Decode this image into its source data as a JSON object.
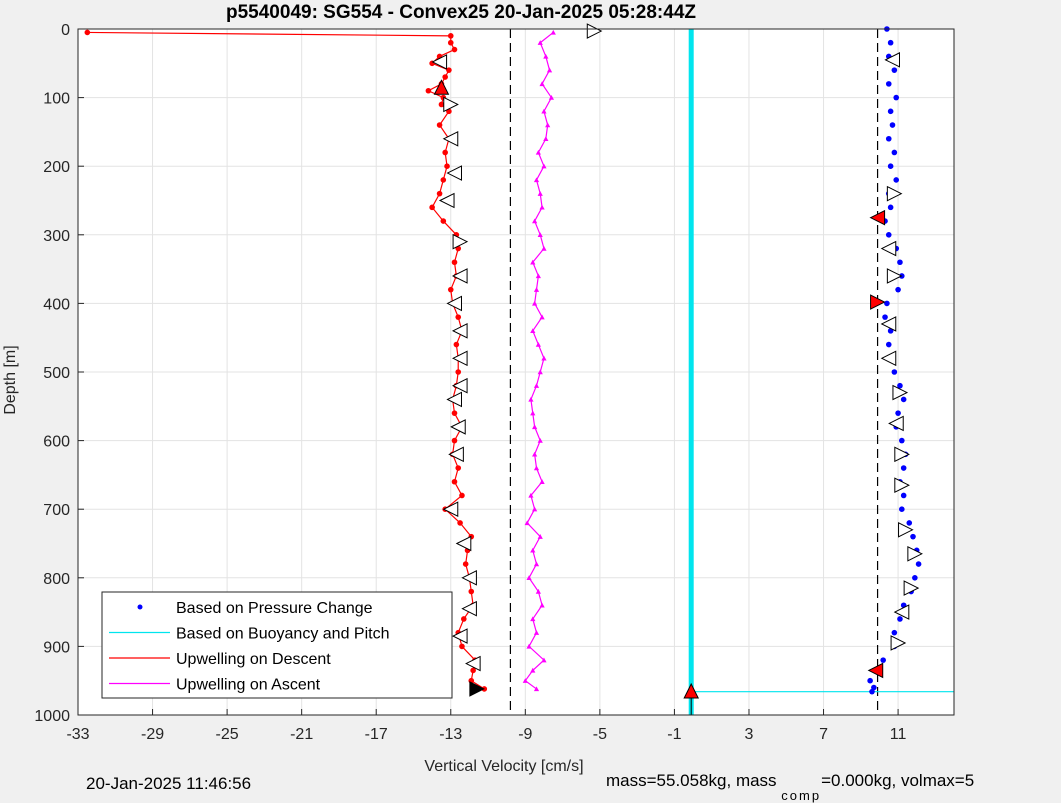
{
  "chart_data": {
    "type": "scatter",
    "title": "p5540049: SG554 - Convex25 20-Jan-2025 05:28:44Z",
    "xlabel": "Vertical Velocity [cm/s]",
    "ylabel": "Depth [m]",
    "xlim": [
      -33,
      14
    ],
    "ylim": [
      0,
      1000
    ],
    "y_reversed": true,
    "grid": true,
    "x_ticks": [
      "-33",
      "-29",
      "-25",
      "-21",
      "-17",
      "-13",
      "-9",
      "-5",
      "-1",
      "3",
      "7",
      "11"
    ],
    "y_ticks": [
      "0",
      "100",
      "200",
      "300",
      "400",
      "500",
      "600",
      "700",
      "800",
      "900",
      "1000"
    ],
    "legend_position": "bottom-left",
    "legend": [
      {
        "label": "Based on Pressure Change",
        "color": "#0000ff",
        "marker": "dot"
      },
      {
        "label": "Based on Buoyancy and Pitch",
        "color": "#00e5ee",
        "marker": "line"
      },
      {
        "label": "Upwelling on Descent",
        "color": "#ff0000",
        "marker": "line"
      },
      {
        "label": "Upwelling on Ascent",
        "color": "#ff00ff",
        "marker": "line"
      }
    ],
    "vertical_lines": [
      {
        "x": -9.8,
        "style": "dashed",
        "color": "#000000"
      },
      {
        "x": 9.9,
        "style": "dashed",
        "color": "#000000"
      },
      {
        "x": -0.1,
        "style": "solid",
        "color": "#00e5ee"
      }
    ],
    "series": [
      {
        "name": "Based on Pressure Change",
        "color": "#0000ff",
        "depth": [
          0,
          20,
          40,
          60,
          80,
          100,
          120,
          140,
          160,
          180,
          200,
          220,
          240,
          260,
          280,
          300,
          320,
          340,
          360,
          380,
          400,
          420,
          440,
          460,
          480,
          500,
          520,
          540,
          560,
          580,
          600,
          620,
          640,
          660,
          680,
          700,
          720,
          740,
          760,
          780,
          800,
          820,
          840,
          860,
          880,
          900,
          920,
          935,
          950,
          960,
          966
        ],
        "velocity": [
          10.4,
          10.6,
          10.5,
          10.8,
          10.5,
          10.9,
          10.6,
          10.7,
          10.5,
          10.8,
          10.6,
          10.9,
          10.5,
          10.6,
          10.3,
          10.5,
          10.9,
          11.1,
          11.2,
          11.0,
          10.4,
          10.3,
          10.6,
          10.5,
          10.6,
          10.8,
          11.1,
          11.3,
          11.0,
          10.9,
          11.2,
          11.4,
          11.3,
          11.1,
          11.3,
          11.2,
          11.6,
          11.8,
          12.0,
          12.1,
          11.9,
          11.7,
          11.3,
          11.1,
          10.8,
          10.8,
          10.2,
          9.9,
          9.5,
          9.7,
          9.6
        ]
      },
      {
        "name": "Upwelling on Descent",
        "color": "#ff0000",
        "depth": [
          5,
          10,
          20,
          30,
          40,
          50,
          60,
          70,
          80,
          90,
          100,
          110,
          120,
          140,
          160,
          180,
          200,
          220,
          240,
          260,
          280,
          300,
          320,
          340,
          360,
          380,
          400,
          420,
          440,
          460,
          480,
          500,
          520,
          540,
          560,
          580,
          600,
          620,
          640,
          660,
          680,
          700,
          720,
          740,
          760,
          780,
          800,
          820,
          840,
          860,
          880,
          900,
          920,
          935,
          950,
          962
        ],
        "velocity": [
          -32.5,
          -13.0,
          -13.0,
          -12.8,
          -13.6,
          -14.0,
          -13.1,
          -13.3,
          -13.5,
          -14.2,
          -13.4,
          -13.5,
          -13.1,
          -13.6,
          -13.1,
          -13.3,
          -13.2,
          -13.4,
          -13.6,
          -14.0,
          -13.4,
          -12.7,
          -12.6,
          -12.8,
          -12.7,
          -13.0,
          -12.9,
          -12.6,
          -12.4,
          -12.7,
          -12.6,
          -12.6,
          -12.7,
          -12.9,
          -12.8,
          -12.4,
          -12.8,
          -12.9,
          -12.6,
          -12.8,
          -12.4,
          -13.3,
          -12.5,
          -11.9,
          -12.1,
          -12.2,
          -12.0,
          -11.9,
          -11.8,
          -12.3,
          -12.6,
          -12.4,
          -11.7,
          -11.8,
          -11.9,
          -11.2
        ]
      },
      {
        "name": "Upwelling on Ascent",
        "color": "#ff00ff",
        "depth": [
          5,
          20,
          40,
          60,
          80,
          100,
          120,
          140,
          160,
          180,
          200,
          220,
          240,
          260,
          280,
          300,
          320,
          340,
          360,
          380,
          400,
          420,
          440,
          460,
          480,
          500,
          520,
          540,
          560,
          580,
          600,
          620,
          640,
          660,
          680,
          700,
          720,
          740,
          760,
          780,
          800,
          820,
          840,
          860,
          880,
          900,
          920,
          935,
          950,
          962
        ],
        "velocity": [
          -7.5,
          -8.2,
          -7.9,
          -7.7,
          -8.1,
          -7.6,
          -8.0,
          -7.8,
          -7.9,
          -8.3,
          -8.0,
          -8.4,
          -8.2,
          -8.1,
          -8.5,
          -8.2,
          -8.0,
          -8.6,
          -8.3,
          -8.4,
          -8.5,
          -8.1,
          -8.6,
          -8.3,
          -8.0,
          -8.2,
          -8.4,
          -8.7,
          -8.6,
          -8.5,
          -8.2,
          -8.5,
          -8.4,
          -8.1,
          -8.7,
          -8.5,
          -8.9,
          -8.2,
          -8.6,
          -8.4,
          -8.8,
          -8.3,
          -8.1,
          -8.6,
          -8.4,
          -8.8,
          -8.0,
          -8.6,
          -9.0,
          -8.4
        ]
      }
    ],
    "triangle_markers": [
      {
        "x": -5.3,
        "y": 3,
        "dir": "right",
        "fill": "#ffffff"
      },
      {
        "x": -13.6,
        "y": 48,
        "dir": "left",
        "fill": "#ffffff"
      },
      {
        "x": -13.5,
        "y": 85,
        "dir": "up",
        "fill": "#ff0000"
      },
      {
        "x": -13.0,
        "y": 110,
        "dir": "right",
        "fill": "#ffffff"
      },
      {
        "x": -13.0,
        "y": 160,
        "dir": "left",
        "fill": "#ffffff"
      },
      {
        "x": -12.8,
        "y": 210,
        "dir": "left",
        "fill": "#ffffff"
      },
      {
        "x": -13.2,
        "y": 250,
        "dir": "left",
        "fill": "#ffffff"
      },
      {
        "x": -12.5,
        "y": 310,
        "dir": "right",
        "fill": "#ffffff"
      },
      {
        "x": -12.5,
        "y": 360,
        "dir": "left",
        "fill": "#ffffff"
      },
      {
        "x": -12.8,
        "y": 400,
        "dir": "left",
        "fill": "#ffffff"
      },
      {
        "x": -12.5,
        "y": 440,
        "dir": "left",
        "fill": "#ffffff"
      },
      {
        "x": -12.5,
        "y": 480,
        "dir": "left",
        "fill": "#ffffff"
      },
      {
        "x": -12.5,
        "y": 520,
        "dir": "left",
        "fill": "#ffffff"
      },
      {
        "x": -12.8,
        "y": 540,
        "dir": "left",
        "fill": "#ffffff"
      },
      {
        "x": -12.6,
        "y": 580,
        "dir": "left",
        "fill": "#ffffff"
      },
      {
        "x": -12.7,
        "y": 620,
        "dir": "left",
        "fill": "#ffffff"
      },
      {
        "x": -13.0,
        "y": 700,
        "dir": "left",
        "fill": "#ffffff"
      },
      {
        "x": -12.3,
        "y": 750,
        "dir": "left",
        "fill": "#ffffff"
      },
      {
        "x": -12.0,
        "y": 800,
        "dir": "left",
        "fill": "#ffffff"
      },
      {
        "x": -12.0,
        "y": 845,
        "dir": "left",
        "fill": "#ffffff"
      },
      {
        "x": -12.5,
        "y": 885,
        "dir": "left",
        "fill": "#ffffff"
      },
      {
        "x": -11.8,
        "y": 925,
        "dir": "left",
        "fill": "#ffffff"
      },
      {
        "x": -11.6,
        "y": 962,
        "dir": "right",
        "fill": "#000000"
      },
      {
        "x": 10.7,
        "y": 45,
        "dir": "left",
        "fill": "#ffffff"
      },
      {
        "x": 10.8,
        "y": 240,
        "dir": "right",
        "fill": "#ffffff"
      },
      {
        "x": 9.9,
        "y": 275,
        "dir": "left",
        "fill": "#ff0000"
      },
      {
        "x": 10.5,
        "y": 320,
        "dir": "left",
        "fill": "#ffffff"
      },
      {
        "x": 10.8,
        "y": 360,
        "dir": "right",
        "fill": "#ffffff"
      },
      {
        "x": 9.9,
        "y": 398,
        "dir": "right",
        "fill": "#ff0000"
      },
      {
        "x": 10.5,
        "y": 430,
        "dir": "left",
        "fill": "#ffffff"
      },
      {
        "x": 10.5,
        "y": 480,
        "dir": "left",
        "fill": "#ffffff"
      },
      {
        "x": 11.1,
        "y": 530,
        "dir": "right",
        "fill": "#ffffff"
      },
      {
        "x": 10.9,
        "y": 575,
        "dir": "left",
        "fill": "#ffffff"
      },
      {
        "x": 11.2,
        "y": 620,
        "dir": "right",
        "fill": "#ffffff"
      },
      {
        "x": 11.2,
        "y": 665,
        "dir": "right",
        "fill": "#ffffff"
      },
      {
        "x": 11.4,
        "y": 730,
        "dir": "right",
        "fill": "#ffffff"
      },
      {
        "x": 11.9,
        "y": 765,
        "dir": "right",
        "fill": "#ffffff"
      },
      {
        "x": 11.7,
        "y": 815,
        "dir": "right",
        "fill": "#ffffff"
      },
      {
        "x": 11.2,
        "y": 850,
        "dir": "left",
        "fill": "#ffffff"
      },
      {
        "x": 11.0,
        "y": 895,
        "dir": "right",
        "fill": "#ffffff"
      },
      {
        "x": 9.8,
        "y": 935,
        "dir": "left",
        "fill": "#ff0000"
      },
      {
        "x": -0.1,
        "y": 965,
        "dir": "up",
        "fill": "#ff0000"
      }
    ]
  },
  "footer": {
    "timestamp": "20-Jan-2025 11:46:56",
    "mass_text": "mass=55.058kg, mass",
    "mass_sub": "comp",
    "mass_text_2": "=0.000kg, volmax=5"
  }
}
